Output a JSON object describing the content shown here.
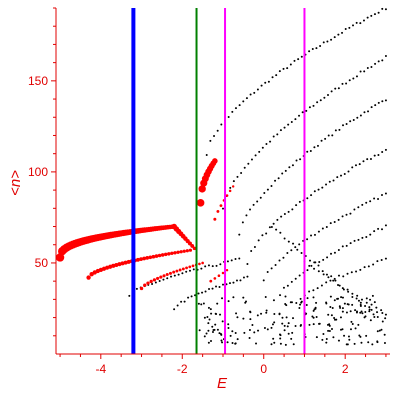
{
  "chart_data": {
    "type": "scatter",
    "title": "",
    "xlabel": "E",
    "ylabel": "<n>",
    "xlim": [
      -5.1,
      3.1
    ],
    "ylim": [
      0,
      190
    ],
    "x_ticks": [
      {
        "value": -4,
        "label": "-4"
      },
      {
        "value": -2,
        "label": "-2"
      },
      {
        "value": 0,
        "label": "0"
      },
      {
        "value": 2,
        "label": "2"
      }
    ],
    "y_ticks": [
      {
        "value": 50,
        "label": "50"
      },
      {
        "value": 100,
        "label": "100"
      },
      {
        "value": 150,
        "label": "150"
      }
    ],
    "vertical_lines": [
      {
        "x": -3.2,
        "color": "#0000ff"
      },
      {
        "x": -1.65,
        "color": "#008000"
      },
      {
        "x": -0.95,
        "color": "#ff00ff"
      },
      {
        "x": 1.0,
        "color": "#ff00ff"
      }
    ],
    "red_series": [
      {
        "x0": -5.0,
        "x1": -2.2,
        "y0": 53,
        "y1": 70,
        "curve": 0.6,
        "n": 55,
        "r0": 4.2,
        "r1": 2.2
      },
      {
        "x0": -2.2,
        "x1": -1.7,
        "y0": 70,
        "y1": 58,
        "curve": 0.0,
        "n": 10,
        "r0": 2.8,
        "r1": 1.8
      },
      {
        "x0": -4.3,
        "x1": -1.8,
        "y0": 42,
        "y1": 57,
        "curve": 0.4,
        "n": 34,
        "r0": 2.2,
        "r1": 1.6
      },
      {
        "x0": -3.0,
        "x1": -1.5,
        "y0": 36,
        "y1": 50,
        "curve": 0.3,
        "n": 20,
        "r0": 1.7,
        "r1": 1.3
      },
      {
        "x0": -1.55,
        "x1": -1.2,
        "y0": 83,
        "y1": 106,
        "curve": 0.5,
        "n": 10,
        "r0": 3.8,
        "r1": 2.8
      },
      {
        "x0": -1.2,
        "x1": -0.75,
        "y0": 74,
        "y1": 92,
        "curve": 0.2,
        "n": 7,
        "r0": 1.5,
        "r1": 1.2
      },
      {
        "x0": -1.3,
        "x1": -0.9,
        "y0": 40,
        "y1": 46,
        "curve": 0.0,
        "n": 5,
        "r0": 1.4,
        "r1": 1.2
      }
    ],
    "black_series": [
      {
        "x0": -1.4,
        "x1": 3.0,
        "y0": 110,
        "y1": 190,
        "curve": 0.35,
        "n": 50
      },
      {
        "x0": -1.0,
        "x1": 3.0,
        "y0": 80,
        "y1": 163,
        "curve": 0.35,
        "n": 46
      },
      {
        "x0": -0.6,
        "x1": 3.0,
        "y0": 65,
        "y1": 140,
        "curve": 0.35,
        "n": 42
      },
      {
        "x0": -0.4,
        "x1": 3.0,
        "y0": 50,
        "y1": 112,
        "curve": 0.35,
        "n": 38
      },
      {
        "x0": 0.0,
        "x1": 3.0,
        "y0": 40,
        "y1": 88,
        "curve": 0.3,
        "n": 32
      },
      {
        "x0": 0.4,
        "x1": 3.0,
        "y0": 32,
        "y1": 70,
        "curve": 0.3,
        "n": 28
      },
      {
        "x0": 0.8,
        "x1": 3.0,
        "y0": 28,
        "y1": 52,
        "curve": 0.3,
        "n": 22
      },
      {
        "x0": -3.3,
        "x1": -0.6,
        "y0": 32,
        "y1": 52,
        "curve": 0.3,
        "n": 30
      },
      {
        "x0": -2.2,
        "x1": -0.4,
        "y0": 25,
        "y1": 42,
        "curve": 0.3,
        "n": 22
      },
      {
        "x0": 0.2,
        "x1": 2.8,
        "y0": 70,
        "y1": 20,
        "curve": 0.0,
        "n": 26
      },
      {
        "x0": 1.0,
        "x1": 3.0,
        "y0": 50,
        "y1": 22,
        "curve": 0.0,
        "n": 18
      }
    ],
    "black_cluster": {
      "x0": -1.6,
      "x1": 3.0,
      "y0": 5,
      "y1": 32,
      "n": 220
    }
  }
}
